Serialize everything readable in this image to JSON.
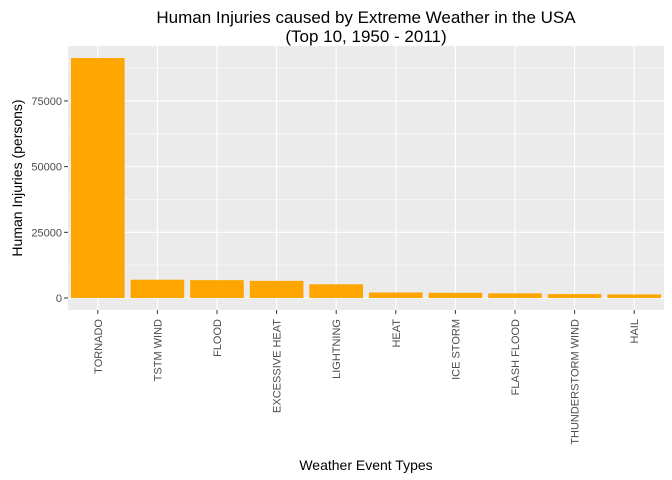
{
  "chart_data": {
    "type": "bar",
    "title": "Human Injuries caused by Extreme Weather in the USA",
    "subtitle": "(Top 10, 1950 - 2011)",
    "xlabel": "Weather Event Types",
    "ylabel": "Human Injuries (persons)",
    "categories": [
      "TORNADO",
      "TSTM WIND",
      "FLOOD",
      "EXCESSIVE HEAT",
      "LIGHTNING",
      "HEAT",
      "ICE STORM",
      "FLASH FLOOD",
      "THUNDERSTORM WIND",
      "HAIL"
    ],
    "values": [
      91346,
      6957,
      6789,
      6525,
      5230,
      2100,
      1975,
      1777,
      1488,
      1361
    ],
    "ylim": [
      -4567,
      95913
    ],
    "yticks": [
      0,
      25000,
      50000,
      75000
    ],
    "ytick_labels": [
      "0",
      "25000",
      "50000",
      "75000"
    ],
    "grid": true,
    "legend": "none",
    "colors": {
      "bar": "#FFA500",
      "panel": "#EBEBEB",
      "grid": "#FFFFFF"
    }
  }
}
